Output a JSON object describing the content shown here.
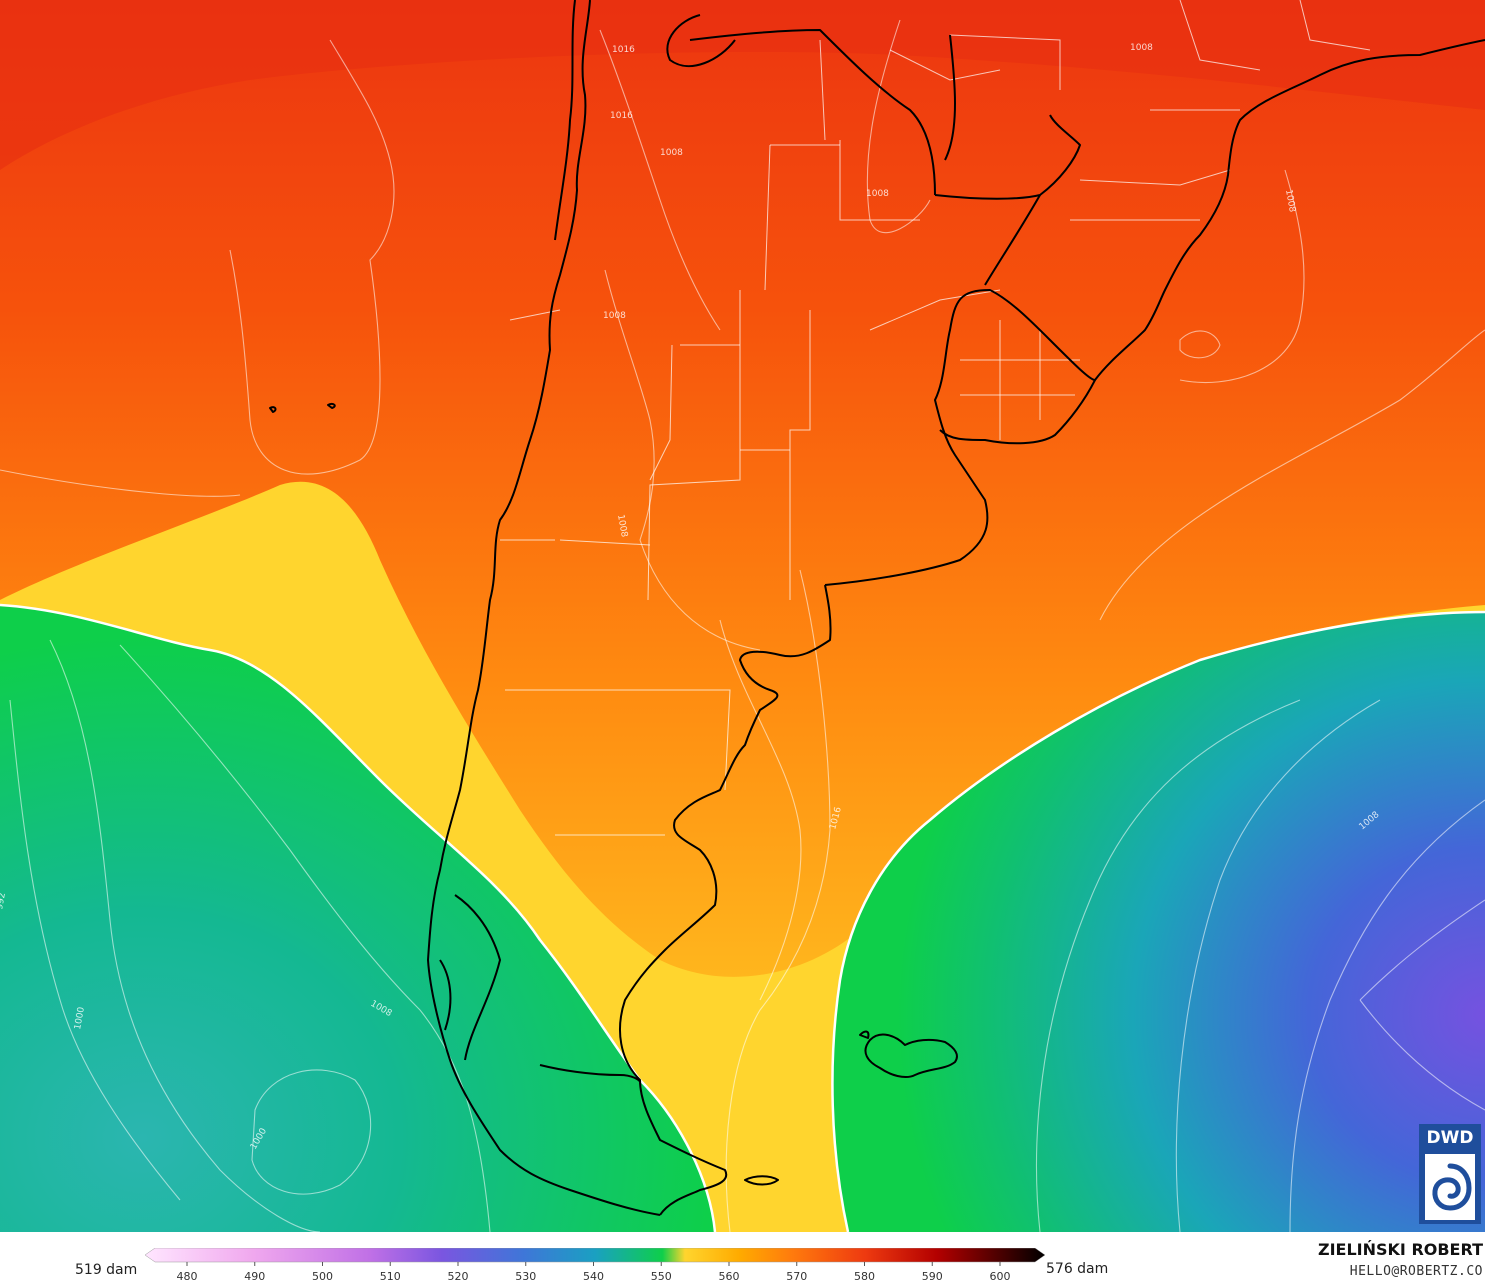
{
  "map": {
    "field": "500 hPa geopotential (shaded)",
    "overlay": "mean sea level pressure isobars (white)",
    "isobar_labels": [
      "1016",
      "1016",
      "1008",
      "1008",
      "1008",
      "1008",
      "1008",
      "1008",
      "1016",
      "1008",
      "1008",
      "1000",
      "1000",
      "992"
    ],
    "colors": {
      "red": "#ee3a10",
      "orange": "#ff7a0d",
      "yellow": "#ffd52e",
      "green": "#0ecf4a",
      "teal": "#16b49a",
      "blue": "#3f76d8",
      "violet": "#7a56e0"
    }
  },
  "legend": {
    "min_label": "519 dam",
    "max_label": "576 dam",
    "ticks": [
      "480",
      "490",
      "500",
      "510",
      "520",
      "530",
      "540",
      "550",
      "560",
      "570",
      "580",
      "590",
      "600"
    ],
    "colors": [
      "#ffe6ff",
      "#f3b3f0",
      "#dc86e8",
      "#b25fe0",
      "#7a56e0",
      "#3f76d8",
      "#1a9fc4",
      "#16b49a",
      "#0ecf4a",
      "#ffd52e",
      "#ffb000",
      "#ff7a0d",
      "#ee3a10",
      "#b30000",
      "#5a0000",
      "#000000"
    ]
  },
  "logo": {
    "text": "DWD"
  },
  "credit": {
    "author": "ZIELIŃSKI ROBERT",
    "contact": "HELLO@ROBERTZ.CO"
  }
}
